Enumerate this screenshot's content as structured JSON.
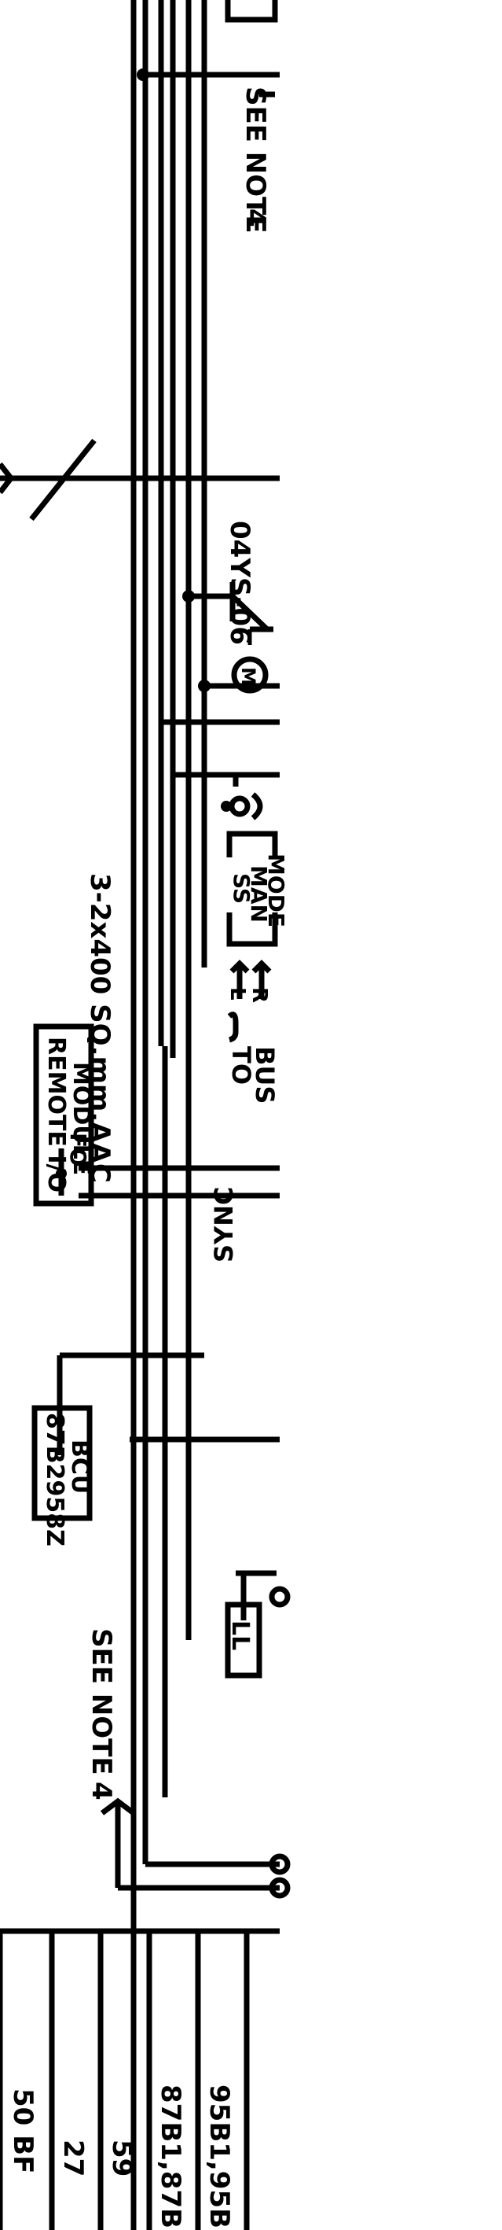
{
  "labels": {
    "conductor": "3-2x400 SQ.mm.AAC",
    "see_note_top": "SEE NOTE",
    "note_num_top": "4",
    "switch_tag": "04YS-06",
    "motor": "M",
    "ss_line1": "SS",
    "ss_line2": "MAN",
    "ss_line3": "MODE",
    "sync_prefix": "TO",
    "sync_line1": "SYNC",
    "sync_line2": "BUS",
    "sync_l": "L",
    "sync_r": "R",
    "remote_line1": "REMOTE I/O",
    "remote_line2": "MODULE",
    "fo": "FO",
    "bcu_line1": "87B2958Z",
    "bcu_line2": "BCU",
    "see_note_bottom": "SEE NOTE",
    "note_num_bottom": "4",
    "ll": "LL"
  },
  "table_cells": [
    "50 BF",
    "27",
    "59",
    "87B1,87B",
    "95B1,95B"
  ]
}
